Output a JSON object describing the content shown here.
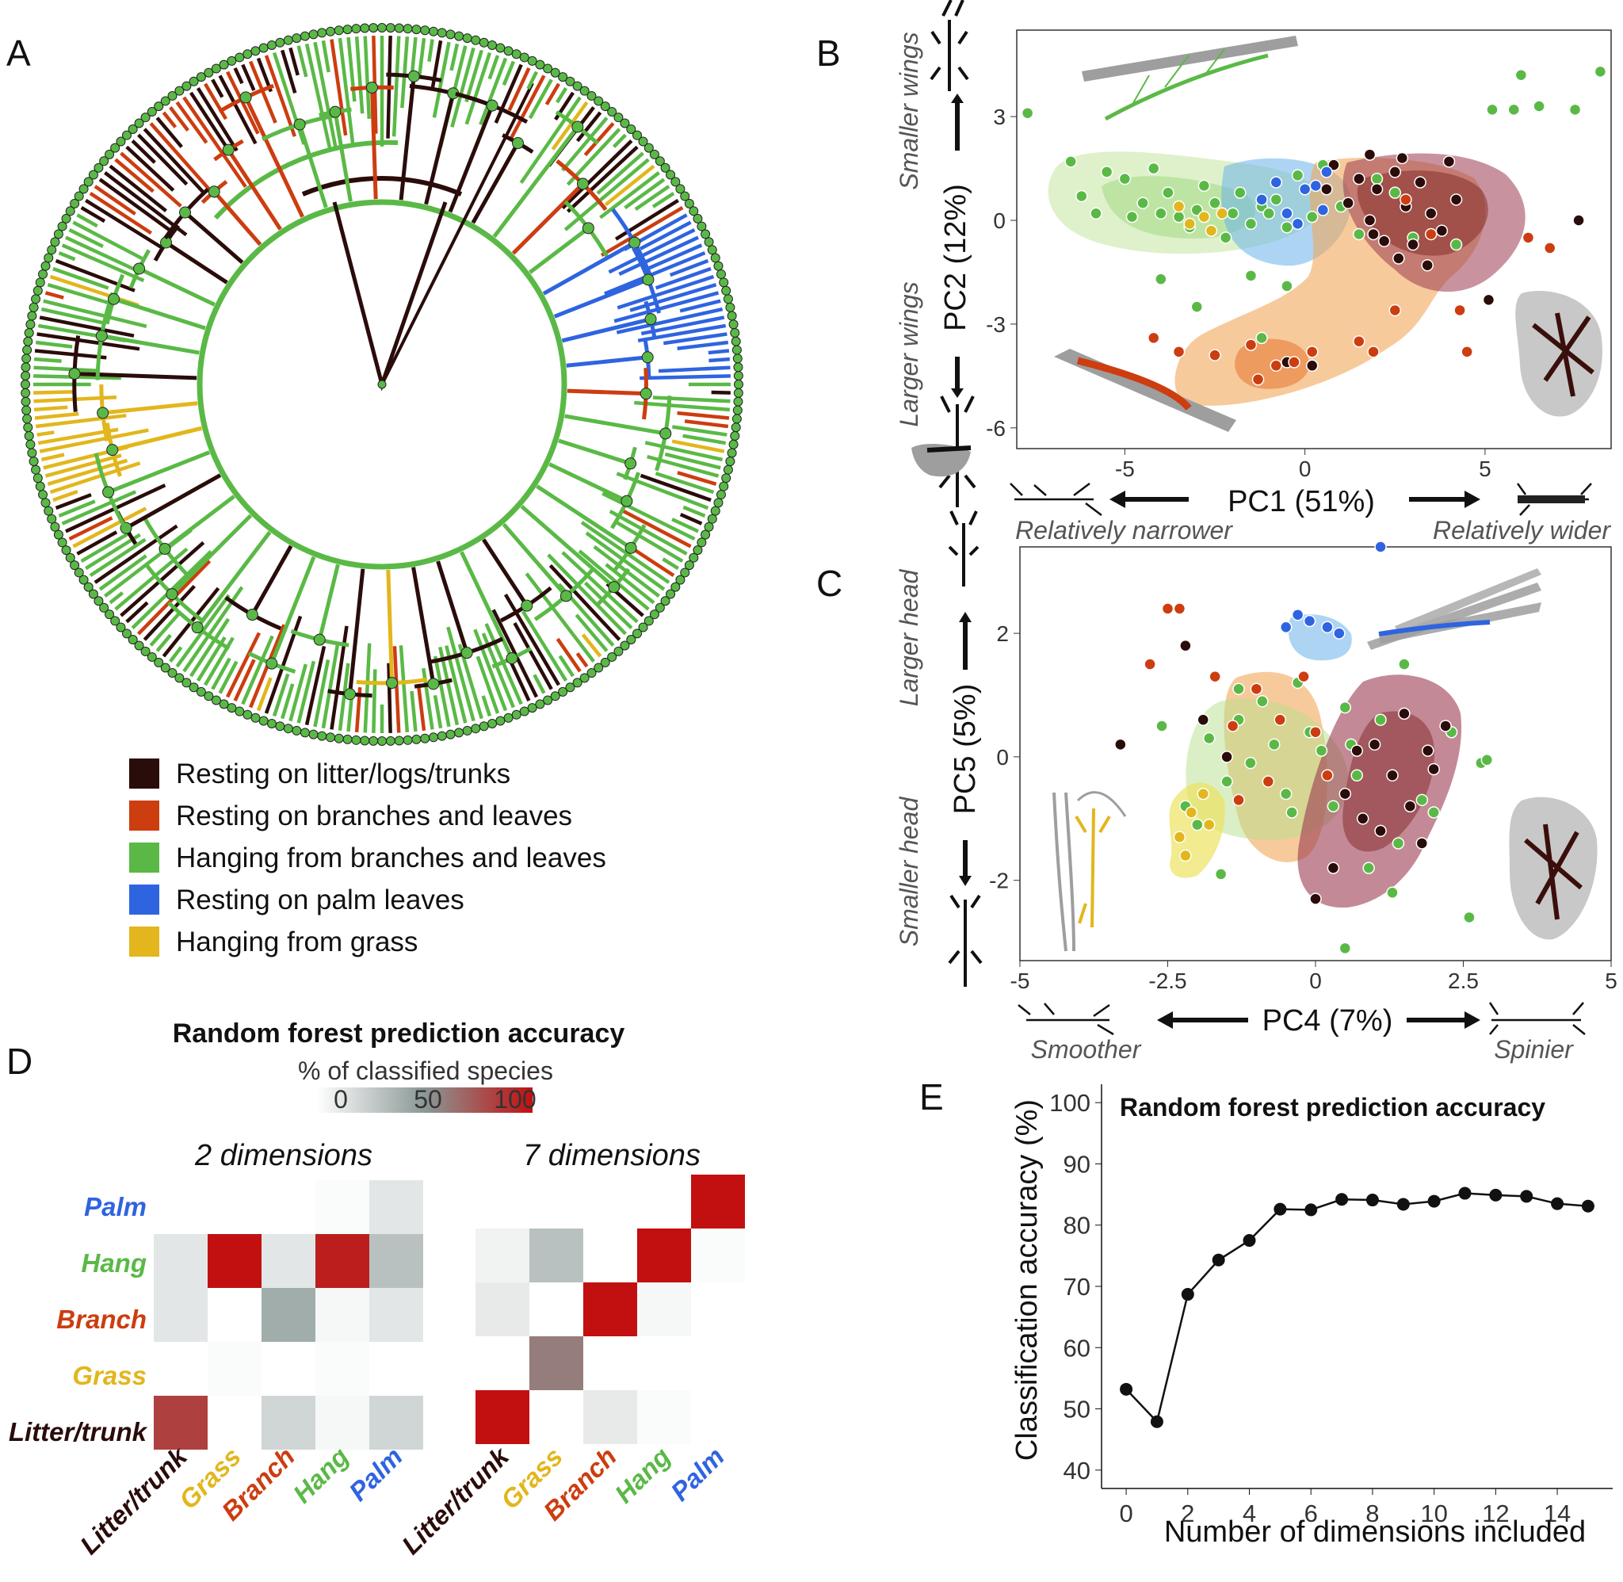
{
  "colors": {
    "litter": "#2a0c0a",
    "branch": "#cc3d10",
    "hang": "#5ab946",
    "palm": "#2f64e0",
    "grass": "#e2b61c",
    "heat_high": "#c21010",
    "heat_mid": "#8a9896"
  },
  "panel_labels": {
    "a": "A",
    "b": "B",
    "c": "C",
    "d": "D",
    "e": "E"
  },
  "legend": [
    {
      "label": "Resting on litter/logs/trunks",
      "color": "#2a0c0a"
    },
    {
      "label": "Resting on branches and leaves",
      "color": "#cc3d10"
    },
    {
      "label": "Hanging from branches and leaves",
      "color": "#5ab946"
    },
    {
      "label": "Resting on palm leaves",
      "color": "#2f64e0"
    },
    {
      "label": "Hanging from grass",
      "color": "#e2b61c"
    }
  ],
  "panel_b": {
    "xlabel": "PC1 (51%)",
    "ylabel": "PC2 (12%)",
    "x_ticks": [
      "-5",
      "0",
      "5"
    ],
    "y_ticks": [
      "3",
      "0",
      "-3",
      "-6"
    ],
    "top_label": "Smaller wings",
    "bottom_label": "Larger wings",
    "left_label": "Relatively narrower",
    "right_label": "Relatively wider"
  },
  "panel_c": {
    "xlabel": "PC4 (7%)",
    "ylabel": "PC5 (5%)",
    "x_ticks": [
      "-5",
      "-2.5",
      "0",
      "2.5",
      "5"
    ],
    "y_ticks": [
      "2",
      "0",
      "-2"
    ],
    "top_label": "Larger head",
    "bottom_label": "Smaller head",
    "left_label": "Smoother",
    "right_label": "Spinier"
  },
  "panel_d": {
    "title": "Random forest prediction accuracy",
    "colorbar_label": "% of classified species",
    "colorbar_ticks": [
      "0",
      "50",
      "100"
    ],
    "left_title": "2 dimensions",
    "right_title": "7 dimensions",
    "row_labels": [
      "Palm",
      "Hang",
      "Branch",
      "Grass",
      "Litter/trunk"
    ],
    "col_labels": [
      "Litter/trunk",
      "Grass",
      "Branch",
      "Hang",
      "Palm"
    ]
  },
  "panel_e": {
    "title": "Random forest prediction accuracy",
    "xlabel": "Number of dimensions included",
    "ylabel": "Classification accuracy (%)",
    "x_ticks": [
      "0",
      "2",
      "4",
      "6",
      "8",
      "10",
      "12",
      "14"
    ],
    "y_ticks": [
      "100",
      "90",
      "80",
      "70",
      "60",
      "50",
      "40"
    ]
  },
  "chart_data": [
    {
      "type": "scatter",
      "panel": "B",
      "xlabel": "PC1 (51%)",
      "ylabel": "PC2 (12%)",
      "xlim": [
        -8,
        8.5
      ],
      "ylim": [
        -6.6,
        5.5
      ],
      "series": [
        {
          "name": "Hanging from branches and leaves",
          "color": "#5ab946",
          "x": [
            -7.7,
            -6.5,
            -6.2,
            -5.8,
            -5.5,
            -5,
            -4.8,
            -4.5,
            -4.2,
            -4,
            -3.8,
            -3.5,
            -3.2,
            -3,
            -2.8,
            -2.5,
            -2.2,
            -2,
            -1.8,
            -1.5,
            -1.2,
            -1,
            -0.8,
            -0.5,
            -0.2,
            0.2,
            0.5,
            1,
            1.5,
            2,
            2.5,
            3,
            4.2,
            5.2,
            5.8,
            6,
            6.5,
            7.5,
            -4,
            -1.5,
            -0.5,
            8.2,
            -3,
            -1.2
          ],
          "y": [
            3.1,
            1.7,
            0.7,
            0.2,
            1.4,
            1.2,
            0.1,
            0.5,
            1.5,
            0.2,
            0.8,
            0.1,
            -0.2,
            0.3,
            1,
            0.5,
            -0.5,
            0.2,
            0.8,
            -0.1,
            0.4,
            0.2,
            0.6,
            -0.2,
            1.3,
            0.1,
            1.6,
            0.4,
            -0.4,
            1.2,
            0.8,
            -0.5,
            -0.7,
            3.2,
            3.2,
            4.2,
            3.3,
            3.2,
            -1.7,
            -1.6,
            -1.9,
            4.3,
            -2.5,
            -3.4
          ]
        },
        {
          "name": "Resting on litter/logs/trunks",
          "color": "#2a0c0a",
          "x": [
            0.8,
            1.2,
            1.5,
            1.8,
            2,
            2.2,
            2.5,
            2.8,
            3,
            3.2,
            3.5,
            3.8,
            4,
            4.2,
            2.6,
            1.9,
            3.4,
            0.6,
            7.6,
            5.1,
            0.2,
            -0.5,
            1.8,
            2.7
          ],
          "y": [
            1.6,
            0.5,
            1.2,
            0,
            0.9,
            -0.6,
            1.4,
            0.4,
            -0.7,
            1.1,
            0.2,
            -0.3,
            1.7,
            0.6,
            -1.1,
            -0.4,
            -1.3,
            0.9,
            0,
            -2.3,
            -4.2,
            -4.1,
            1.9,
            1.8
          ]
        },
        {
          "name": "Resting on branches and leaves",
          "color": "#cc3d10",
          "x": [
            -4.2,
            -3.5,
            -2.5,
            -1.5,
            -0.8,
            -0.3,
            0.2,
            1.5,
            2.5,
            3.5,
            4.3,
            4.5,
            6.2,
            6.8,
            1.9,
            -1.3,
            2.8
          ],
          "y": [
            -3.4,
            -3.8,
            -3.9,
            -3.6,
            -4.2,
            -4.1,
            -3.8,
            -3.5,
            -2.6,
            -0.4,
            -2.6,
            -3.8,
            -0.5,
            -0.8,
            -3.8,
            -4.6,
            0.6
          ]
        },
        {
          "name": "Resting on palm leaves",
          "color": "#2f64e0",
          "x": [
            -1.2,
            -0.8,
            -0.5,
            0,
            0.3,
            0.6,
            -0.2,
            0.5
          ],
          "y": [
            0.6,
            1.1,
            0.2,
            0.9,
            1,
            1.4,
            -0.1,
            0.3
          ]
        },
        {
          "name": "Hanging from grass",
          "color": "#e2b61c",
          "x": [
            -3.5,
            -3.2,
            -2.8,
            -2.6,
            -2.3
          ],
          "y": [
            0.4,
            -0.1,
            0.1,
            -0.3,
            0.2
          ]
        }
      ]
    },
    {
      "type": "scatter",
      "panel": "C",
      "xlabel": "PC4 (7%)",
      "ylabel": "PC5 (5%)",
      "xlim": [
        -5,
        5
      ],
      "ylim": [
        -3.3,
        3.4
      ],
      "series": [
        {
          "name": "Hanging from branches and leaves",
          "color": "#5ab946",
          "x": [
            -2.6,
            -2.2,
            -2,
            -1.8,
            -1.5,
            -1.3,
            -1.1,
            -0.9,
            -0.7,
            -0.5,
            -0.3,
            -0.1,
            0.1,
            0.3,
            0.5,
            0.7,
            0.9,
            1.1,
            1.3,
            1.5,
            1.8,
            2,
            2.3,
            2.6,
            -1.6,
            -0.4,
            0.6,
            1.4,
            2.8,
            2.9,
            0.5,
            -1.3
          ],
          "y": [
            0.5,
            -0.8,
            -1.1,
            0.3,
            -0.4,
            0.6,
            -0.1,
            0.9,
            0.2,
            -0.6,
            1.2,
            0.4,
            0.1,
            -0.8,
            0.8,
            -0.3,
            -1.8,
            0.6,
            -2.2,
            1.5,
            -0.7,
            -0.9,
            0.4,
            -2.6,
            -1.9,
            -0.9,
            0.2,
            -1.4,
            -0.1,
            -0.05,
            -3.1,
            1.1
          ]
        },
        {
          "name": "Resting on litter/logs/trunks",
          "color": "#2a0c0a",
          "x": [
            0.5,
            0.8,
            1,
            1.3,
            1.5,
            1.8,
            2,
            2.2,
            0.3,
            0.7,
            1.1,
            1.6,
            1.9,
            -2.2,
            -1.9,
            -3.3,
            -1.5,
            0
          ],
          "y": [
            -0.6,
            -1,
            0.2,
            -0.3,
            0.7,
            -1.4,
            -0.2,
            0.5,
            -1.8,
            0.1,
            -1.2,
            -0.8,
            0.1,
            1.8,
            0.6,
            0.2,
            0,
            -2.3
          ]
        },
        {
          "name": "Resting on branches and leaves",
          "color": "#cc3d10",
          "x": [
            -2.5,
            -2.3,
            -1.7,
            -1,
            -0.6,
            -0.2,
            0,
            0.2,
            -1.4,
            -0.8,
            -2.8,
            -1.3
          ],
          "y": [
            2.4,
            2.4,
            1.3,
            1.1,
            0.6,
            1.3,
            0.4,
            -0.3,
            0.5,
            -0.4,
            1.5,
            -0.7
          ]
        },
        {
          "name": "Resting on palm leaves",
          "color": "#2f64e0",
          "x": [
            -0.5,
            -0.3,
            -0.1,
            0.2,
            0.4,
            1.1
          ],
          "y": [
            2.1,
            2.3,
            2.2,
            2.1,
            2,
            3.4
          ]
        },
        {
          "name": "Hanging from grass",
          "color": "#e2b61c",
          "x": [
            -2.3,
            -2.1,
            -1.9,
            -1.8,
            -2.2
          ],
          "y": [
            -1.3,
            -0.9,
            -0.6,
            -1.1,
            -1.6
          ]
        }
      ]
    },
    {
      "type": "heatmap",
      "panel": "D",
      "title": "Random forest prediction accuracy",
      "rows": [
        "Palm",
        "Hang",
        "Branch",
        "Grass",
        "Litter/trunk"
      ],
      "columns": [
        "Litter/trunk",
        "Grass",
        "Branch",
        "Hang",
        "Palm"
      ],
      "matrices": [
        {
          "name": "2 dimensions",
          "values": [
            [
              0,
              0,
              0,
              2,
              12
            ],
            [
              12,
              100,
              12,
              95,
              30
            ],
            [
              12,
              0,
              40,
              4,
              12
            ],
            [
              0,
              2,
              0,
              2,
              0
            ],
            [
              82,
              0,
              20,
              4,
              20
            ]
          ]
        },
        {
          "name": "7 dimensions",
          "values": [
            [
              0,
              0,
              0,
              0,
              100
            ],
            [
              6,
              30,
              0,
              100,
              2
            ],
            [
              10,
              0,
              100,
              4,
              0
            ],
            [
              0,
              60,
              0,
              0,
              0
            ],
            [
              100,
              0,
              10,
              2,
              0
            ]
          ]
        }
      ],
      "colorbar": {
        "min": 0,
        "max": 100
      }
    },
    {
      "type": "line",
      "panel": "E",
      "title": "Random forest prediction accuracy",
      "xlabel": "Number of dimensions included",
      "ylabel": "Classification accuracy (%)",
      "x": [
        0,
        1,
        2,
        3,
        4,
        5,
        6,
        7,
        8,
        9,
        10,
        11,
        12,
        13,
        14,
        15
      ],
      "values": [
        53.2,
        47.9,
        68.7,
        74.3,
        77.5,
        82.6,
        82.5,
        84.2,
        84.1,
        83.4,
        83.9,
        85.2,
        84.9,
        84.7,
        83.5,
        83.1
      ],
      "xlim": [
        -0.8,
        15.8
      ],
      "ylim": [
        37,
        103
      ]
    }
  ]
}
